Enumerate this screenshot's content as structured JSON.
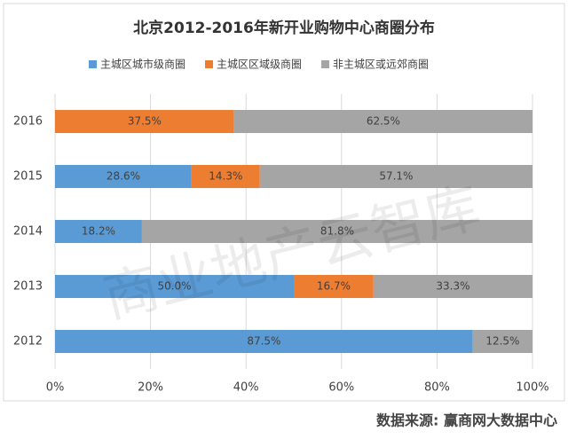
{
  "chart_data": {
    "type": "stacked-barh",
    "title": "北京2012-2016年新开业购物中心商圈分布",
    "categories": [
      "2016",
      "2015",
      "2014",
      "2013",
      "2012"
    ],
    "series": [
      {
        "name": "主城区城市级商圈",
        "color": "#5b9bd5",
        "values": [
          null,
          28.6,
          18.2,
          50.0,
          87.5
        ],
        "value_labels": [
          null,
          "28.6%",
          "18.2%",
          "50.0%",
          "87.5%"
        ]
      },
      {
        "name": "主城区区域级商圈",
        "color": "#ed7d31",
        "values": [
          37.5,
          14.3,
          null,
          16.7,
          null
        ],
        "value_labels": [
          "37.5%",
          "14.3%",
          null,
          "16.7%",
          null
        ]
      },
      {
        "name": "非主城区或远郊商圈",
        "color": "#a5a5a5",
        "values": [
          62.5,
          57.1,
          81.8,
          33.3,
          12.5
        ],
        "value_labels": [
          "62.5%",
          "57.1%",
          "81.8%",
          "33.3%",
          "12.5%"
        ]
      }
    ],
    "xlim": [
      0,
      100
    ],
    "xticks": [
      {
        "value": 0,
        "label": "0%"
      },
      {
        "value": 20,
        "label": "20%"
      },
      {
        "value": 40,
        "label": "40%"
      },
      {
        "value": 60,
        "label": "60%"
      },
      {
        "value": 80,
        "label": "80%"
      },
      {
        "value": 100,
        "label": "100%"
      }
    ],
    "grid": true,
    "legend": "top",
    "watermark": "商业地产云智库",
    "source": "数据来源: 赢商网大数据中心"
  }
}
